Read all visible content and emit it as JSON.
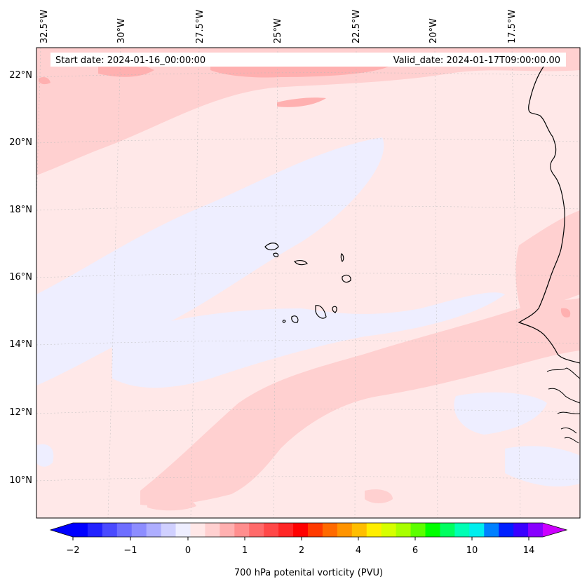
{
  "header": {
    "start_date": "Start date: 2024-01-16_00:00:00",
    "valid_date": "Valid_date: 2024-01-17T09:00:00.00"
  },
  "map": {
    "lon_labels": [
      "32.5°W",
      "30°W",
      "27.5°W",
      "25°W",
      "22.5°W",
      "20°W",
      "17.5°W"
    ],
    "lat_labels": [
      "22°N",
      "20°N",
      "18°N",
      "16°N",
      "14°N",
      "12°N",
      "10°N"
    ],
    "field_colors": {
      "background": "#ffe8e8",
      "negative": "#eeeeff",
      "positive_light": "#ffd0d0",
      "positive_mid": "#ffb0b0",
      "positive_strong": "#ff8e8e"
    },
    "coastline_color": "#000000"
  },
  "colorbar": {
    "label": "700 hPa potenital vorticity (PVU)",
    "tick_labels": [
      "−2",
      "−1",
      "0",
      "1",
      "2",
      "4",
      "6",
      "10",
      "14"
    ],
    "colors": [
      "#0000ff",
      "#2222ff",
      "#4a4aff",
      "#6e6eff",
      "#8d8dff",
      "#aeaeff",
      "#d0d0ff",
      "#eeeeff",
      "#ffe8e8",
      "#ffd0d0",
      "#ffb0b0",
      "#ff8e8e",
      "#ff6a6a",
      "#ff4848",
      "#ff2626",
      "#ff0000",
      "#ff3a00",
      "#ff6a00",
      "#ff9400",
      "#ffbe00",
      "#ffee00",
      "#d6ff00",
      "#a8ff00",
      "#5cff00",
      "#00ff00",
      "#00ff60",
      "#00ffb4",
      "#00eeee",
      "#0080ff",
      "#0020ff",
      "#3a00ff",
      "#8800ff"
    ],
    "under_color": "#0000ff",
    "over_color": "#cc00ff"
  }
}
